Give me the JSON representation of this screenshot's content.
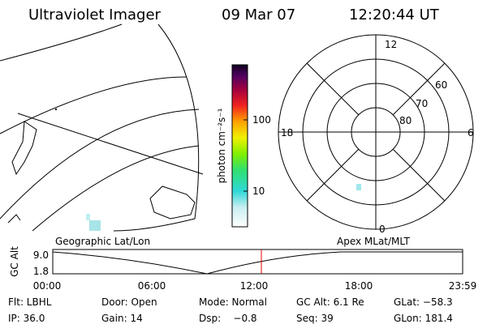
{
  "header": {
    "title": "Ultraviolet Imager",
    "date": "09 Mar 07",
    "time": "12:20:44 UT"
  },
  "colorbar": {
    "label": "photon cm⁻²s⁻¹",
    "ticks": [
      "100",
      "10"
    ]
  },
  "polar_plot": {
    "mlt_labels": [
      "12",
      "18",
      "6",
      "0"
    ],
    "lat_labels": [
      "60",
      "70",
      "80"
    ]
  },
  "orbit_plot": {
    "left_label": "Geographic Lat/Lon",
    "right_label": "Apex MLat/MLT",
    "y_label": "GC Alt",
    "y_ticks": [
      "9.0",
      "1.8"
    ],
    "x_ticks": [
      "00:00",
      "06:00",
      "12:00",
      "18:00",
      "23:59"
    ]
  },
  "status": {
    "rows": [
      [
        "Flt: LBHL",
        "Door: Open",
        "Mode: Normal",
        "GC Alt: 6.1 Re",
        "GLat: −58.3"
      ],
      [
        "IP: 36.0",
        "Gain: 14",
        "Dsp:    −0.8",
        "Seq: 39",
        "GLon: 181.4"
      ]
    ]
  }
}
